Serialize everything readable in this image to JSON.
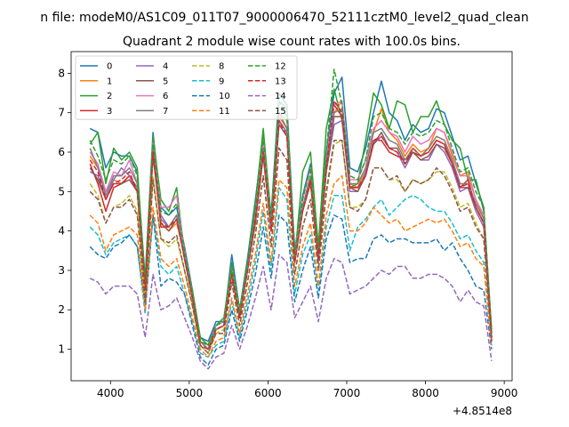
{
  "figure": {
    "suptitle": "n file: modeM0/AS1C09_011T07_9000006470_52111cztM0_level2_quad_clean",
    "title": "Quadrant 2 module wise count rates with 100.0s bins.",
    "offset_text": "+4.8514e8"
  },
  "chart_data": {
    "type": "line",
    "title": "Quadrant 2 module wise count rates with 100.0s bins.",
    "xlabel": "",
    "ylabel": "",
    "x_offset": 485140000,
    "xlim": [
      3500,
      9100
    ],
    "ylim": [
      0.2,
      8.55
    ],
    "xticks": [
      4000,
      5000,
      6000,
      7000,
      8000,
      9000
    ],
    "yticks": [
      1,
      2,
      3,
      4,
      5,
      6,
      7,
      8
    ],
    "grid": false,
    "legend": {
      "placement": "top-left",
      "columns": 4
    },
    "x": [
      3740,
      3840,
      3940,
      4040,
      4140,
      4240,
      4340,
      4440,
      4540,
      4640,
      4740,
      4840,
      4940,
      5040,
      5140,
      5240,
      5340,
      5440,
      5540,
      5640,
      5740,
      5840,
      5940,
      6040,
      6140,
      6240,
      6340,
      6440,
      6540,
      6640,
      6740,
      6840,
      6940,
      7040,
      7140,
      7240,
      7340,
      7440,
      7540,
      7640,
      7740,
      7840,
      7940,
      8040,
      8140,
      8240,
      8340,
      8440,
      8540,
      8640,
      8740,
      8840
    ],
    "series": [
      {
        "name": "0",
        "color": "#1f77b4",
        "dash": "solid",
        "values": [
          6.6,
          6.5,
          5.6,
          6.0,
          5.9,
          5.9,
          5.5,
          2.8,
          6.5,
          4.6,
          4.4,
          4.6,
          3.6,
          2.5,
          1.3,
          1.2,
          1.7,
          1.7,
          3.4,
          2.0,
          3.3,
          4.8,
          6.4,
          4.4,
          7.5,
          7.2,
          3.5,
          4.9,
          5.7,
          3.6,
          6.0,
          7.5,
          7.9,
          5.6,
          5.5,
          6.1,
          7.0,
          7.8,
          7.0,
          6.8,
          6.3,
          6.7,
          6.5,
          6.6,
          7.1,
          7.0,
          6.4,
          5.8,
          5.9,
          5.2,
          4.6,
          1.3
        ]
      },
      {
        "name": "1",
        "color": "#ff7f0e",
        "dash": "solid",
        "values": [
          5.9,
          5.6,
          5.0,
          5.3,
          5.2,
          5.4,
          5.1,
          2.6,
          6.0,
          4.2,
          4.0,
          4.2,
          3.4,
          2.3,
          1.2,
          1.0,
          1.5,
          1.6,
          3.0,
          1.8,
          3.1,
          4.4,
          6.0,
          4.1,
          6.9,
          6.6,
          3.3,
          4.6,
          5.3,
          3.4,
          5.6,
          7.0,
          7.3,
          5.2,
          5.1,
          5.6,
          6.5,
          7.1,
          6.5,
          6.3,
          5.9,
          6.2,
          6.0,
          6.1,
          6.6,
          6.5,
          5.9,
          5.4,
          5.5,
          4.8,
          4.3,
          1.2
        ]
      },
      {
        "name": "2",
        "color": "#2ca02c",
        "dash": "solid",
        "values": [
          6.2,
          6.5,
          5.2,
          6.1,
          5.8,
          6.0,
          5.6,
          2.7,
          6.4,
          4.8,
          4.5,
          5.1,
          3.4,
          2.5,
          1.3,
          1.1,
          1.6,
          1.8,
          3.2,
          2.0,
          3.2,
          4.7,
          6.6,
          4.3,
          7.3,
          7.1,
          3.3,
          5.5,
          6.0,
          3.6,
          6.6,
          7.6,
          6.8,
          5.1,
          5.2,
          6.3,
          7.5,
          7.2,
          6.6,
          7.3,
          7.2,
          6.5,
          6.9,
          6.9,
          7.3,
          6.7,
          6.3,
          6.1,
          5.3,
          5.3,
          4.5,
          1.5
        ]
      },
      {
        "name": "3",
        "color": "#d62728",
        "dash": "solid",
        "values": [
          5.7,
          5.2,
          4.5,
          5.1,
          5.2,
          5.4,
          5.0,
          2.6,
          6.2,
          4.1,
          4.1,
          4.4,
          3.3,
          2.3,
          1.2,
          1.0,
          1.5,
          1.6,
          2.9,
          1.8,
          3.0,
          4.3,
          6.1,
          4.0,
          6.8,
          6.5,
          3.2,
          4.6,
          5.4,
          3.3,
          5.6,
          7.2,
          6.9,
          5.1,
          5.1,
          5.4,
          6.3,
          6.3,
          6.0,
          5.9,
          5.8,
          6.0,
          5.9,
          6.0,
          6.3,
          6.2,
          5.7,
          5.1,
          5.3,
          4.6,
          4.2,
          1.2
        ]
      },
      {
        "name": "4",
        "color": "#9467bd",
        "dash": "solid",
        "values": [
          5.5,
          5.4,
          4.8,
          5.3,
          5.6,
          5.4,
          5.1,
          2.5,
          6.0,
          4.4,
          4.1,
          4.4,
          3.4,
          2.3,
          1.2,
          1.0,
          1.5,
          1.6,
          2.9,
          1.8,
          3.0,
          4.3,
          6.0,
          4.0,
          6.8,
          6.5,
          3.3,
          4.5,
          5.3,
          3.2,
          5.5,
          6.7,
          6.8,
          5.0,
          5.0,
          5.5,
          6.2,
          6.4,
          6.1,
          6.0,
          5.6,
          6.0,
          5.8,
          5.8,
          6.2,
          6.0,
          5.6,
          5.0,
          5.1,
          4.5,
          4.1,
          1.3
        ]
      },
      {
        "name": "5",
        "color": "#8c564b",
        "dash": "solid",
        "values": [
          5.6,
          5.3,
          4.8,
          5.2,
          5.2,
          5.3,
          5.0,
          2.5,
          5.9,
          4.2,
          4.0,
          4.3,
          3.3,
          2.3,
          1.2,
          1.0,
          1.5,
          1.6,
          2.9,
          1.8,
          3.0,
          4.2,
          5.9,
          4.0,
          6.7,
          6.4,
          3.2,
          4.5,
          5.2,
          3.3,
          5.5,
          6.9,
          6.9,
          5.1,
          5.0,
          5.4,
          6.2,
          6.5,
          6.1,
          6.1,
          5.7,
          6.0,
          5.8,
          5.9,
          6.2,
          6.1,
          5.7,
          5.1,
          5.1,
          4.6,
          4.2,
          1.3
        ]
      },
      {
        "name": "6",
        "color": "#e377c2",
        "dash": "solid",
        "values": [
          6.0,
          5.7,
          5.0,
          5.5,
          5.4,
          5.8,
          5.2,
          2.6,
          6.3,
          4.6,
          4.6,
          4.9,
          3.5,
          2.4,
          1.2,
          1.0,
          1.6,
          1.7,
          3.1,
          1.9,
          3.1,
          4.5,
          6.3,
          4.2,
          7.0,
          6.8,
          3.4,
          4.8,
          5.6,
          3.4,
          5.8,
          7.2,
          7.3,
          5.3,
          5.3,
          5.8,
          6.6,
          6.8,
          6.5,
          6.4,
          6.0,
          6.4,
          6.2,
          6.3,
          6.6,
          6.5,
          6.0,
          5.4,
          5.4,
          4.8,
          4.4,
          1.3
        ]
      },
      {
        "name": "7",
        "color": "#7f7f7f",
        "dash": "solid",
        "values": [
          6.1,
          5.6,
          4.9,
          5.4,
          5.4,
          5.6,
          5.2,
          2.6,
          6.2,
          4.3,
          4.1,
          4.4,
          3.4,
          2.4,
          1.2,
          1.0,
          1.5,
          1.6,
          3.0,
          1.8,
          3.1,
          4.4,
          6.1,
          4.1,
          7.0,
          6.6,
          3.3,
          4.6,
          5.4,
          3.4,
          5.7,
          7.0,
          7.1,
          5.2,
          5.2,
          5.6,
          6.5,
          6.6,
          6.3,
          6.2,
          5.8,
          6.1,
          5.9,
          6.1,
          6.4,
          6.3,
          5.8,
          5.2,
          5.2,
          4.7,
          4.3,
          1.3
        ]
      },
      {
        "name": "8",
        "color": "#bcbd22",
        "dash": "dashed",
        "values": [
          5.2,
          4.9,
          4.2,
          4.6,
          4.7,
          4.9,
          4.5,
          2.3,
          5.4,
          3.8,
          3.6,
          3.8,
          3.0,
          2.1,
          1.1,
          0.9,
          1.4,
          1.5,
          2.7,
          1.6,
          2.7,
          3.9,
          5.4,
          3.6,
          6.1,
          5.8,
          2.9,
          4.1,
          4.8,
          3.0,
          4.9,
          6.2,
          6.3,
          4.6,
          4.6,
          4.8,
          5.6,
          5.6,
          5.3,
          5.3,
          5.0,
          5.3,
          5.2,
          5.3,
          5.5,
          5.5,
          5.1,
          4.6,
          4.7,
          4.2,
          3.8,
          1.2
        ]
      },
      {
        "name": "9",
        "color": "#17becf",
        "dash": "dashed",
        "values": [
          4.1,
          3.9,
          3.4,
          3.7,
          3.8,
          3.9,
          3.6,
          1.9,
          4.4,
          3.1,
          2.9,
          3.1,
          2.4,
          1.7,
          0.9,
          0.8,
          1.1,
          1.2,
          2.2,
          1.3,
          2.2,
          3.2,
          4.5,
          3.0,
          5.1,
          4.8,
          2.4,
          3.4,
          3.9,
          2.5,
          4.1,
          4.9,
          4.9,
          3.5,
          4.1,
          4.3,
          4.6,
          4.8,
          4.4,
          4.6,
          4.8,
          4.9,
          4.8,
          4.6,
          4.5,
          4.5,
          4.2,
          3.8,
          3.9,
          3.5,
          3.2,
          1.1
        ]
      },
      {
        "name": "10",
        "color": "#1f77b4",
        "dash": "dashed",
        "values": [
          3.6,
          3.4,
          3.3,
          3.6,
          3.7,
          3.9,
          3.6,
          2.1,
          4.4,
          2.6,
          2.8,
          2.7,
          2.4,
          1.6,
          0.8,
          0.6,
          1.0,
          1.1,
          2.0,
          1.2,
          2.0,
          2.9,
          4.1,
          2.8,
          4.4,
          4.2,
          2.2,
          3.0,
          3.6,
          2.3,
          3.8,
          4.4,
          4.3,
          3.2,
          3.3,
          3.3,
          3.8,
          3.9,
          3.7,
          3.8,
          3.8,
          3.7,
          3.7,
          3.7,
          3.8,
          3.5,
          3.7,
          3.3,
          3.0,
          2.6,
          2.5,
          1.0
        ]
      },
      {
        "name": "11",
        "color": "#ff7f0e",
        "dash": "dashed",
        "values": [
          4.4,
          4.2,
          3.5,
          3.9,
          4.0,
          4.1,
          3.9,
          2.0,
          4.6,
          3.3,
          3.1,
          3.3,
          2.6,
          1.8,
          1.0,
          0.8,
          1.2,
          1.3,
          2.3,
          1.4,
          2.4,
          3.4,
          4.7,
          3.2,
          5.3,
          5.1,
          2.6,
          3.6,
          4.2,
          2.6,
          4.4,
          5.2,
          5.4,
          4.0,
          4.0,
          4.2,
          4.6,
          4.4,
          4.2,
          4.3,
          4.0,
          4.1,
          4.2,
          4.3,
          4.2,
          4.3,
          4.0,
          3.6,
          3.7,
          3.3,
          3.1,
          1.1
        ]
      },
      {
        "name": "12",
        "color": "#2ca02c",
        "dash": "dashed",
        "values": [
          6.3,
          5.9,
          5.3,
          5.8,
          5.7,
          5.9,
          5.4,
          2.7,
          6.3,
          4.5,
          4.4,
          4.7,
          3.5,
          2.4,
          1.2,
          1.1,
          1.6,
          1.7,
          3.1,
          1.9,
          3.2,
          4.6,
          6.4,
          4.3,
          7.3,
          6.9,
          3.4,
          4.8,
          5.6,
          3.5,
          6.0,
          8.1,
          7.2,
          5.4,
          5.3,
          5.8,
          6.9,
          7.0,
          6.6,
          6.5,
          6.2,
          6.5,
          6.4,
          6.5,
          6.8,
          6.7,
          6.1,
          5.5,
          5.6,
          5.0,
          4.6,
          1.4
        ]
      },
      {
        "name": "13",
        "color": "#d62728",
        "dash": "dashed",
        "values": [
          5.8,
          5.5,
          4.8,
          5.2,
          5.3,
          5.5,
          5.0,
          2.5,
          6.0,
          4.2,
          4.1,
          4.3,
          3.3,
          2.3,
          1.1,
          1.0,
          1.5,
          1.6,
          2.9,
          1.8,
          3.0,
          4.3,
          6.0,
          4.0,
          6.8,
          6.4,
          3.2,
          4.5,
          5.3,
          3.3,
          5.6,
          7.3,
          7.0,
          5.1,
          5.1,
          5.4,
          6.3,
          6.4,
          6.1,
          6.0,
          5.7,
          6.1,
          5.9,
          6.0,
          6.3,
          6.2,
          5.7,
          5.1,
          5.2,
          4.6,
          4.2,
          1.3
        ]
      },
      {
        "name": "14",
        "color": "#9467bd",
        "dash": "dashed",
        "values": [
          2.8,
          2.7,
          2.4,
          2.6,
          2.6,
          2.6,
          2.4,
          1.3,
          2.9,
          2.0,
          2.1,
          2.3,
          1.8,
          1.3,
          0.7,
          0.5,
          0.8,
          0.9,
          1.6,
          1.0,
          1.6,
          2.3,
          3.1,
          2.0,
          3.4,
          3.2,
          1.8,
          2.2,
          2.6,
          1.7,
          2.8,
          3.3,
          3.2,
          2.4,
          2.5,
          2.6,
          2.8,
          3.0,
          2.9,
          3.1,
          3.1,
          2.8,
          2.8,
          2.9,
          2.9,
          2.8,
          2.6,
          2.2,
          2.5,
          2.2,
          2.1,
          0.7
        ]
      },
      {
        "name": "15",
        "color": "#8c564b",
        "dash": "dashed",
        "values": [
          5.0,
          4.8,
          4.2,
          4.6,
          4.6,
          4.8,
          4.4,
          2.2,
          5.3,
          3.8,
          3.7,
          3.9,
          3.0,
          2.1,
          1.1,
          0.9,
          1.4,
          1.4,
          2.7,
          1.6,
          2.7,
          3.9,
          5.4,
          3.6,
          6.1,
          5.8,
          2.9,
          4.1,
          4.8,
          3.0,
          5.0,
          6.3,
          6.3,
          4.6,
          4.5,
          4.8,
          5.6,
          5.6,
          5.3,
          5.4,
          5.0,
          5.3,
          5.2,
          5.3,
          5.6,
          5.4,
          5.0,
          4.5,
          4.6,
          4.1,
          3.8,
          1.2
        ]
      }
    ]
  }
}
